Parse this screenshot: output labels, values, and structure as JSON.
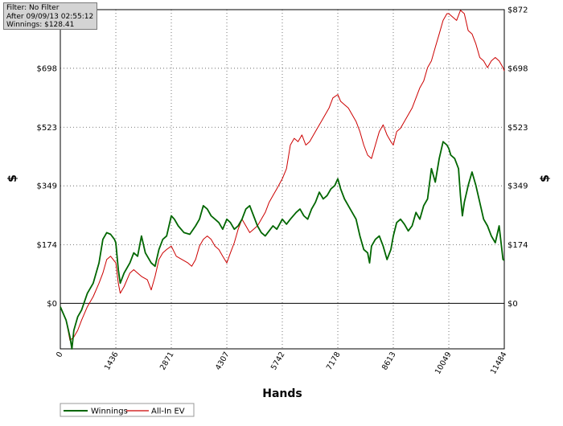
{
  "info": {
    "filter": "Filter: No Filter",
    "after": "After 09/09/13 02:55:12",
    "winnings": "Winnings: $128.41"
  },
  "chart_data": {
    "type": "line",
    "xlabel": "Hands",
    "ylabel": "$",
    "ylabel_right": "$",
    "xlim": [
      0,
      11484
    ],
    "ylim": [
      -135,
      872
    ],
    "x_ticks": [
      0,
      1436,
      2871,
      4307,
      5742,
      7178,
      8613,
      10049,
      11484
    ],
    "x_tick_labels": [
      "0",
      "1436",
      "2871",
      "4307",
      "5742",
      "7178",
      "8613",
      "10049",
      "11484"
    ],
    "y_ticks": [
      0,
      174,
      349,
      523,
      698,
      872
    ],
    "y_tick_labels": [
      "$0",
      "$174",
      "$349",
      "$523",
      "$698",
      "$872"
    ],
    "grid": true,
    "legend": "bottom-left",
    "series": [
      {
        "name": "Winnings",
        "color": "#006600",
        "points": [
          [
            0,
            -10
          ],
          [
            150,
            -50
          ],
          [
            250,
            -100
          ],
          [
            300,
            -135
          ],
          [
            350,
            -80
          ],
          [
            450,
            -40
          ],
          [
            550,
            -20
          ],
          [
            700,
            30
          ],
          [
            850,
            60
          ],
          [
            1000,
            120
          ],
          [
            1100,
            190
          ],
          [
            1200,
            210
          ],
          [
            1300,
            205
          ],
          [
            1400,
            190
          ],
          [
            1436,
            180
          ],
          [
            1500,
            100
          ],
          [
            1550,
            60
          ],
          [
            1650,
            90
          ],
          [
            1800,
            120
          ],
          [
            1900,
            150
          ],
          [
            2000,
            140
          ],
          [
            2100,
            200
          ],
          [
            2200,
            150
          ],
          [
            2350,
            120
          ],
          [
            2450,
            110
          ],
          [
            2550,
            160
          ],
          [
            2650,
            190
          ],
          [
            2750,
            200
          ],
          [
            2871,
            260
          ],
          [
            2950,
            250
          ],
          [
            3050,
            230
          ],
          [
            3200,
            210
          ],
          [
            3350,
            205
          ],
          [
            3500,
            230
          ],
          [
            3600,
            250
          ],
          [
            3700,
            290
          ],
          [
            3800,
            280
          ],
          [
            3900,
            260
          ],
          [
            4000,
            250
          ],
          [
            4100,
            240
          ],
          [
            4200,
            220
          ],
          [
            4307,
            250
          ],
          [
            4400,
            240
          ],
          [
            4500,
            220
          ],
          [
            4600,
            230
          ],
          [
            4700,
            250
          ],
          [
            4800,
            280
          ],
          [
            4900,
            290
          ],
          [
            5000,
            260
          ],
          [
            5100,
            230
          ],
          [
            5200,
            210
          ],
          [
            5300,
            200
          ],
          [
            5400,
            215
          ],
          [
            5500,
            230
          ],
          [
            5600,
            220
          ],
          [
            5742,
            250
          ],
          [
            5850,
            235
          ],
          [
            5950,
            250
          ],
          [
            6100,
            270
          ],
          [
            6200,
            280
          ],
          [
            6300,
            260
          ],
          [
            6400,
            250
          ],
          [
            6500,
            280
          ],
          [
            6600,
            300
          ],
          [
            6700,
            330
          ],
          [
            6800,
            310
          ],
          [
            6900,
            320
          ],
          [
            7000,
            340
          ],
          [
            7100,
            350
          ],
          [
            7178,
            370
          ],
          [
            7250,
            340
          ],
          [
            7350,
            310
          ],
          [
            7450,
            290
          ],
          [
            7550,
            270
          ],
          [
            7650,
            250
          ],
          [
            7750,
            200
          ],
          [
            7850,
            160
          ],
          [
            7950,
            150
          ],
          [
            8000,
            120
          ],
          [
            8050,
            170
          ],
          [
            8150,
            190
          ],
          [
            8250,
            200
          ],
          [
            8350,
            170
          ],
          [
            8450,
            130
          ],
          [
            8550,
            160
          ],
          [
            8613,
            200
          ],
          [
            8700,
            240
          ],
          [
            8800,
            250
          ],
          [
            8900,
            235
          ],
          [
            9000,
            215
          ],
          [
            9100,
            230
          ],
          [
            9200,
            270
          ],
          [
            9300,
            250
          ],
          [
            9400,
            290
          ],
          [
            9500,
            310
          ],
          [
            9600,
            400
          ],
          [
            9700,
            360
          ],
          [
            9800,
            430
          ],
          [
            9900,
            480
          ],
          [
            10000,
            470
          ],
          [
            10049,
            460
          ],
          [
            10100,
            440
          ],
          [
            10200,
            430
          ],
          [
            10300,
            400
          ],
          [
            10350,
            320
          ],
          [
            10400,
            260
          ],
          [
            10450,
            300
          ],
          [
            10550,
            350
          ],
          [
            10650,
            390
          ],
          [
            10750,
            350
          ],
          [
            10850,
            300
          ],
          [
            10950,
            250
          ],
          [
            11050,
            230
          ],
          [
            11150,
            200
          ],
          [
            11250,
            180
          ],
          [
            11350,
            230
          ],
          [
            11400,
            180
          ],
          [
            11450,
            130
          ],
          [
            11484,
            128
          ]
        ]
      },
      {
        "name": "All-In EV",
        "color": "#cc0000",
        "points": [
          [
            0,
            -10
          ],
          [
            150,
            -50
          ],
          [
            250,
            -110
          ],
          [
            350,
            -100
          ],
          [
            450,
            -80
          ],
          [
            550,
            -50
          ],
          [
            700,
            -10
          ],
          [
            850,
            20
          ],
          [
            1000,
            60
          ],
          [
            1100,
            90
          ],
          [
            1200,
            130
          ],
          [
            1300,
            140
          ],
          [
            1436,
            120
          ],
          [
            1500,
            60
          ],
          [
            1550,
            30
          ],
          [
            1650,
            50
          ],
          [
            1800,
            90
          ],
          [
            1900,
            100
          ],
          [
            2000,
            90
          ],
          [
            2100,
            80
          ],
          [
            2250,
            70
          ],
          [
            2350,
            40
          ],
          [
            2450,
            80
          ],
          [
            2550,
            130
          ],
          [
            2650,
            150
          ],
          [
            2750,
            160
          ],
          [
            2871,
            170
          ],
          [
            3000,
            140
          ],
          [
            3150,
            130
          ],
          [
            3300,
            120
          ],
          [
            3400,
            110
          ],
          [
            3500,
            130
          ],
          [
            3600,
            170
          ],
          [
            3700,
            190
          ],
          [
            3800,
            200
          ],
          [
            3900,
            190
          ],
          [
            4000,
            170
          ],
          [
            4100,
            160
          ],
          [
            4200,
            140
          ],
          [
            4307,
            120
          ],
          [
            4400,
            150
          ],
          [
            4500,
            180
          ],
          [
            4600,
            220
          ],
          [
            4700,
            250
          ],
          [
            4800,
            230
          ],
          [
            4900,
            210
          ],
          [
            5000,
            220
          ],
          [
            5100,
            230
          ],
          [
            5200,
            250
          ],
          [
            5300,
            270
          ],
          [
            5400,
            300
          ],
          [
            5500,
            320
          ],
          [
            5600,
            340
          ],
          [
            5742,
            370
          ],
          [
            5850,
            400
          ],
          [
            5950,
            470
          ],
          [
            6050,
            490
          ],
          [
            6150,
            480
          ],
          [
            6250,
            500
          ],
          [
            6350,
            470
          ],
          [
            6450,
            480
          ],
          [
            6550,
            500
          ],
          [
            6650,
            520
          ],
          [
            6750,
            540
          ],
          [
            6850,
            560
          ],
          [
            6950,
            580
          ],
          [
            7050,
            610
          ],
          [
            7178,
            620
          ],
          [
            7250,
            600
          ],
          [
            7350,
            590
          ],
          [
            7450,
            580
          ],
          [
            7550,
            560
          ],
          [
            7650,
            540
          ],
          [
            7750,
            510
          ],
          [
            7850,
            470
          ],
          [
            7950,
            440
          ],
          [
            8050,
            430
          ],
          [
            8150,
            470
          ],
          [
            8250,
            510
          ],
          [
            8350,
            530
          ],
          [
            8450,
            500
          ],
          [
            8550,
            480
          ],
          [
            8613,
            470
          ],
          [
            8700,
            510
          ],
          [
            8800,
            520
          ],
          [
            8900,
            540
          ],
          [
            9000,
            560
          ],
          [
            9100,
            580
          ],
          [
            9200,
            610
          ],
          [
            9300,
            640
          ],
          [
            9400,
            660
          ],
          [
            9500,
            700
          ],
          [
            9600,
            720
          ],
          [
            9700,
            760
          ],
          [
            9800,
            800
          ],
          [
            9900,
            840
          ],
          [
            10000,
            860
          ],
          [
            10049,
            860
          ],
          [
            10150,
            850
          ],
          [
            10250,
            840
          ],
          [
            10350,
            870
          ],
          [
            10450,
            860
          ],
          [
            10550,
            810
          ],
          [
            10650,
            800
          ],
          [
            10750,
            770
          ],
          [
            10850,
            730
          ],
          [
            10950,
            720
          ],
          [
            11050,
            700
          ],
          [
            11150,
            720
          ],
          [
            11250,
            730
          ],
          [
            11350,
            720
          ],
          [
            11450,
            700
          ],
          [
            11484,
            690
          ]
        ]
      }
    ]
  }
}
